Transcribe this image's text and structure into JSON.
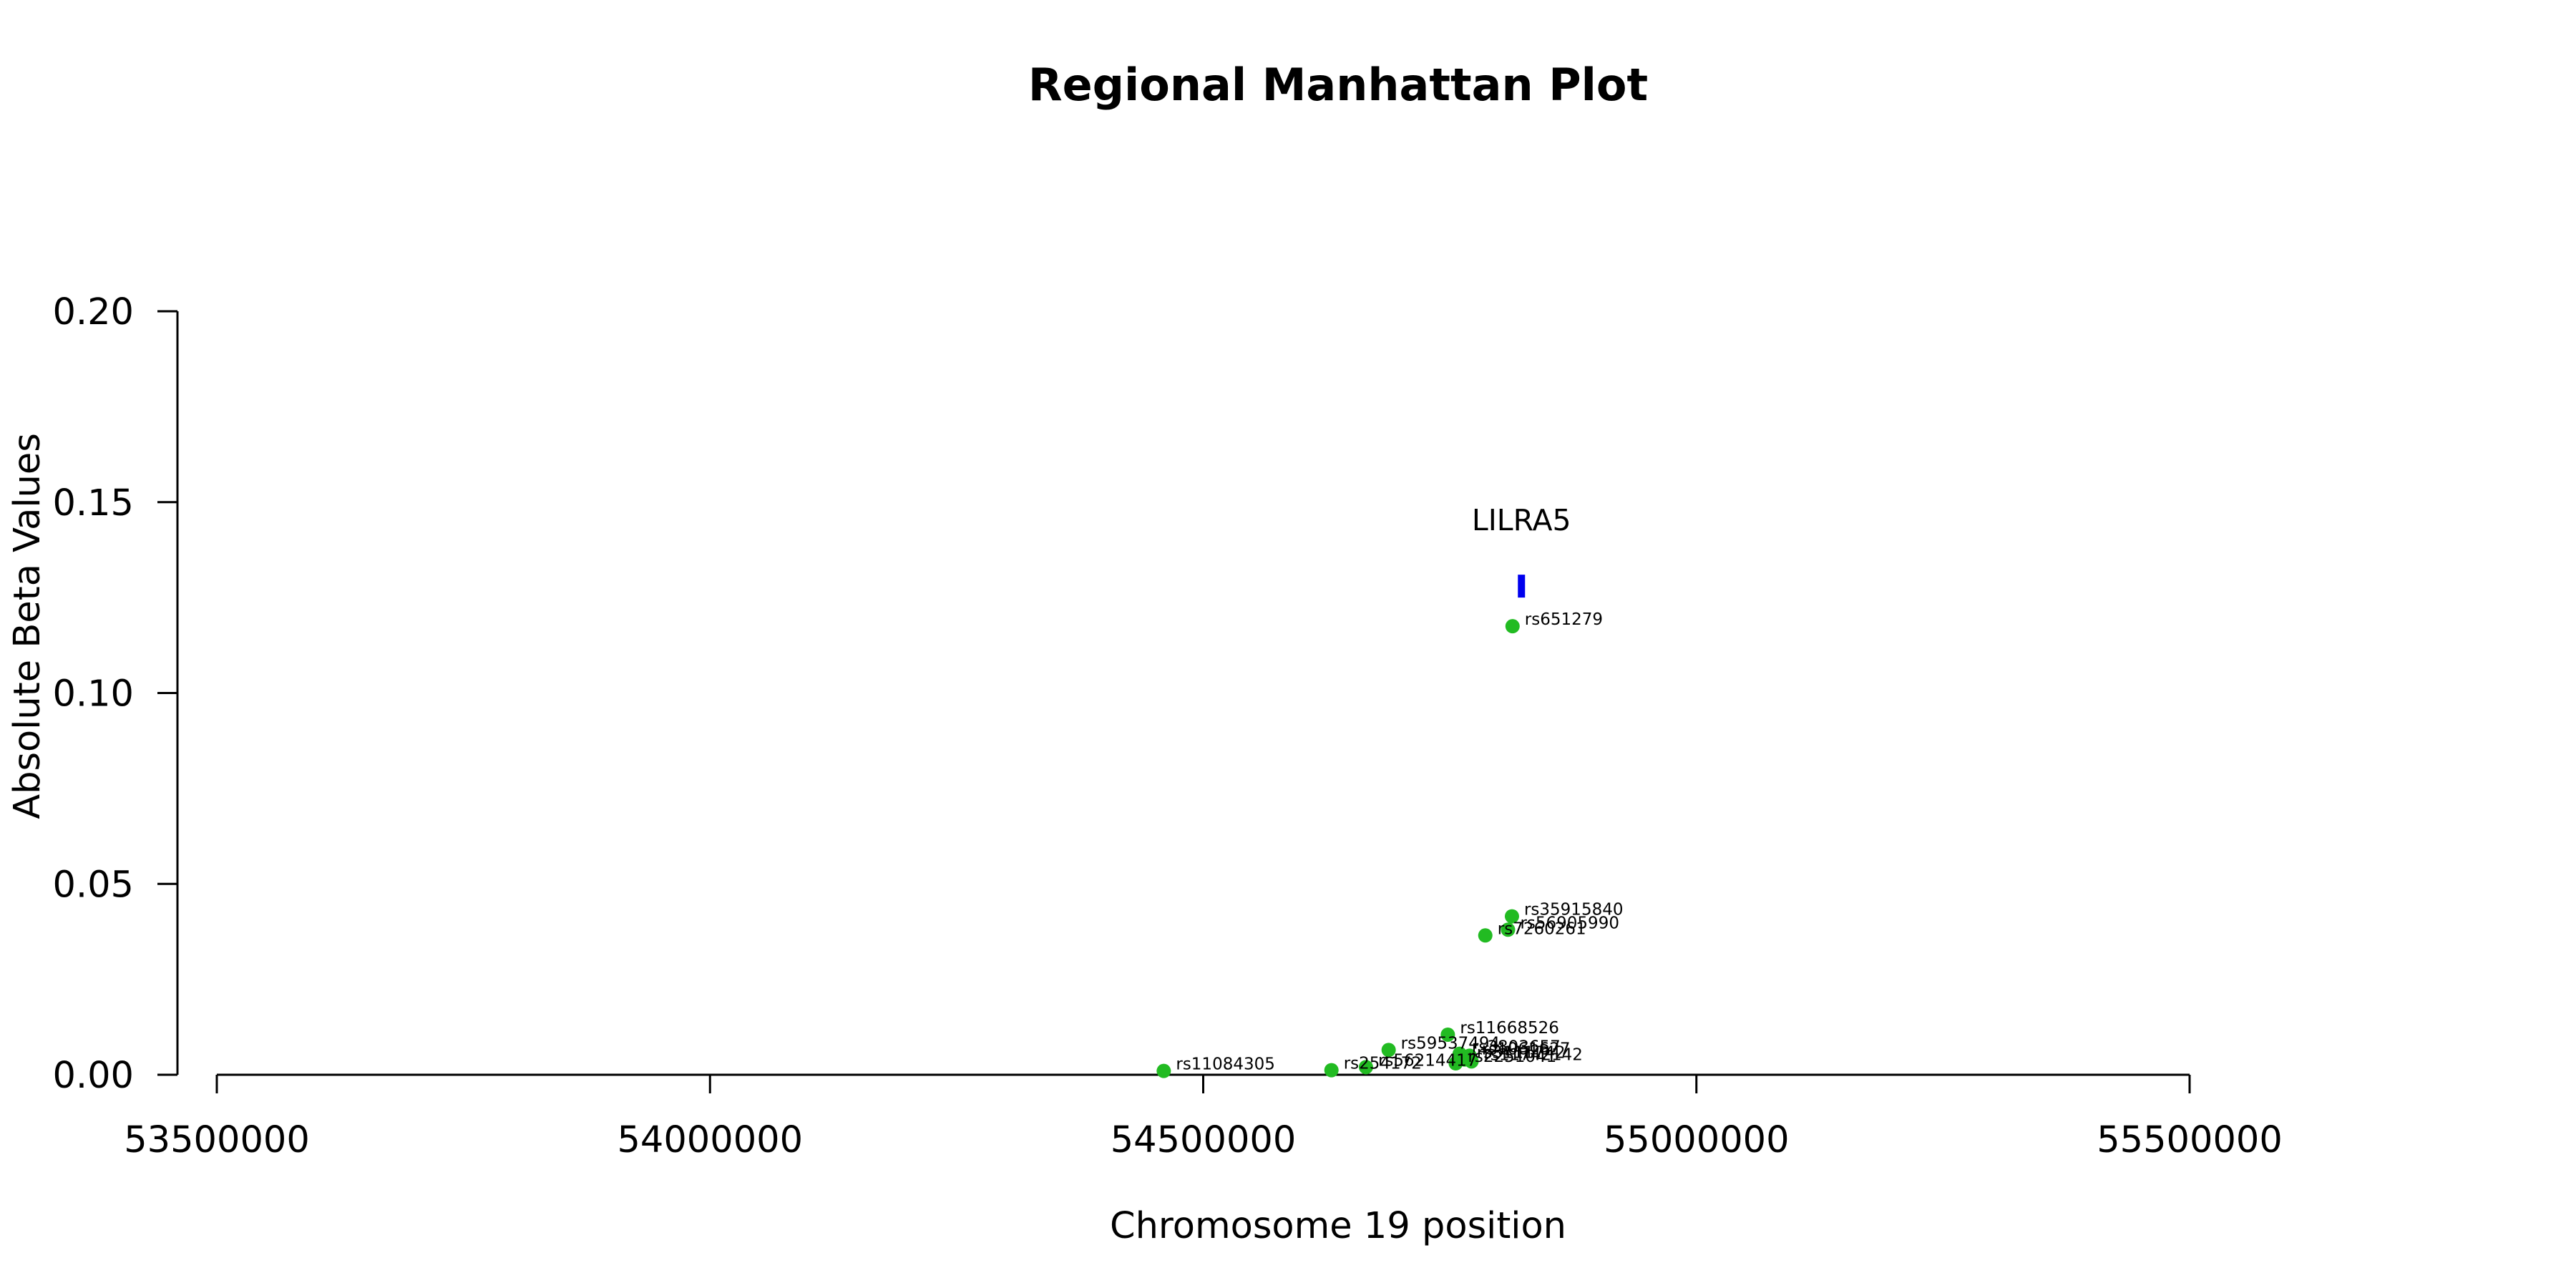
{
  "chart_data": {
    "type": "scatter",
    "title": "Regional Manhattan Plot",
    "xlabel": "Chromosome 19 position",
    "ylabel": "Absolute Beta Values",
    "xlim": [
      53500000,
      55500000
    ],
    "ylim": [
      0,
      0.2
    ],
    "x_ticks": [
      "53500000",
      "54000000",
      "54500000",
      "55000000",
      "55500000"
    ],
    "y_ticks": [
      "0.00",
      "0.05",
      "0.10",
      "0.15",
      "0.20"
    ],
    "grid": false,
    "legend": "none",
    "colors": {
      "points": "#22bb22",
      "gene": "#0000ee",
      "axis": "#000000"
    },
    "gene": {
      "name": "LILRA5",
      "start": 54819000,
      "end": 54826000,
      "y": 0.128
    },
    "series": [
      {
        "points": [
          {
            "x": 54813600,
            "y": 0.1175,
            "label": "rs651279"
          },
          {
            "x": 54813000,
            "y": 0.0415,
            "label": "rs35915840"
          },
          {
            "x": 54809000,
            "y": 0.038,
            "label": "rs56905990"
          },
          {
            "x": 54786000,
            "y": 0.0365,
            "label": "rs7260261"
          },
          {
            "x": 54748000,
            "y": 0.0105,
            "label": "rs11668526"
          },
          {
            "x": 54688000,
            "y": 0.0065,
            "label": "rs59537494"
          },
          {
            "x": 54760000,
            "y": 0.0055,
            "label": "rs3803657"
          },
          {
            "x": 54770000,
            "y": 0.005,
            "label": "rs1061627"
          },
          {
            "x": 54765000,
            "y": 0.004,
            "label": "rs3111742"
          },
          {
            "x": 54772000,
            "y": 0.0035,
            "label": "rs11742142"
          },
          {
            "x": 54756000,
            "y": 0.003,
            "label": "rs2251041"
          },
          {
            "x": 54665000,
            "y": 0.002,
            "label": "rs56214417"
          },
          {
            "x": 54630000,
            "y": 0.0012,
            "label": "rs254172"
          },
          {
            "x": 54460000,
            "y": 0.001,
            "label": "rs11084305"
          }
        ]
      }
    ]
  }
}
